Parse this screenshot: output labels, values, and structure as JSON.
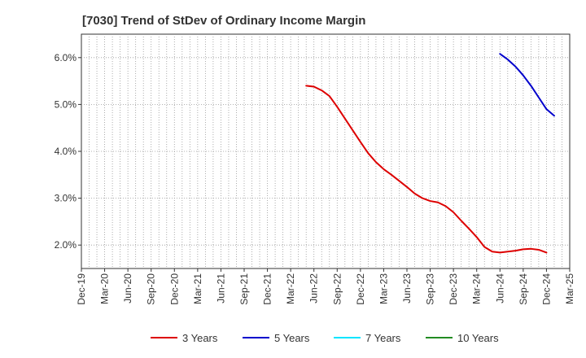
{
  "chart_data": {
    "type": "line",
    "title": "[7030]  Trend of StDev of Ordinary Income Margin",
    "xlabel": "",
    "ylabel": "",
    "ylim": [
      1.5,
      6.5
    ],
    "y_ticks": [
      "2.0%",
      "3.0%",
      "4.0%",
      "5.0%",
      "6.0%"
    ],
    "y_tick_values": [
      2.0,
      3.0,
      4.0,
      5.0,
      6.0
    ],
    "x_ticks": [
      "Dec-19",
      "Mar-20",
      "Jun-20",
      "Sep-20",
      "Dec-20",
      "Mar-21",
      "Jun-21",
      "Sep-21",
      "Dec-21",
      "Mar-22",
      "Jun-22",
      "Sep-22",
      "Dec-22",
      "Mar-23",
      "Jun-23",
      "Sep-23",
      "Dec-23",
      "Mar-24",
      "Jun-24",
      "Sep-24",
      "Dec-24",
      "Mar-25"
    ],
    "grid": true,
    "legend_position": "bottom",
    "series": [
      {
        "name": "3 Years",
        "color": "#dd0000",
        "points": [
          [
            "May-22",
            5.4
          ],
          [
            "Jun-22",
            5.38
          ],
          [
            "Jul-22",
            5.3
          ],
          [
            "Aug-22",
            5.18
          ],
          [
            "Sep-22",
            4.95
          ],
          [
            "Oct-22",
            4.7
          ],
          [
            "Nov-22",
            4.45
          ],
          [
            "Dec-22",
            4.2
          ],
          [
            "Jan-23",
            3.96
          ],
          [
            "Feb-23",
            3.77
          ],
          [
            "Mar-23",
            3.62
          ],
          [
            "Apr-23",
            3.5
          ],
          [
            "May-23",
            3.37
          ],
          [
            "Jun-23",
            3.24
          ],
          [
            "Jul-23",
            3.1
          ],
          [
            "Aug-23",
            3.0
          ],
          [
            "Sep-23",
            2.94
          ],
          [
            "Oct-23",
            2.91
          ],
          [
            "Nov-23",
            2.83
          ],
          [
            "Dec-23",
            2.7
          ],
          [
            "Jan-24",
            2.52
          ],
          [
            "Feb-24",
            2.35
          ],
          [
            "Mar-24",
            2.17
          ],
          [
            "Apr-24",
            1.96
          ],
          [
            "May-24",
            1.86
          ],
          [
            "Jun-24",
            1.84
          ],
          [
            "Jul-24",
            1.86
          ],
          [
            "Aug-24",
            1.88
          ],
          [
            "Sep-24",
            1.91
          ],
          [
            "Oct-24",
            1.92
          ],
          [
            "Nov-24",
            1.9
          ],
          [
            "Dec-24",
            1.84
          ]
        ]
      },
      {
        "name": "5 Years",
        "color": "#0000cc",
        "points": [
          [
            "Jun-24",
            6.08
          ],
          [
            "Jul-24",
            5.96
          ],
          [
            "Aug-24",
            5.81
          ],
          [
            "Sep-24",
            5.62
          ],
          [
            "Oct-24",
            5.4
          ],
          [
            "Nov-24",
            5.15
          ],
          [
            "Dec-24",
            4.9
          ],
          [
            "Jan-25",
            4.76
          ]
        ]
      },
      {
        "name": "7 Years",
        "color": "#00e5ff",
        "points": []
      },
      {
        "name": "10 Years",
        "color": "#228b22",
        "points": []
      }
    ]
  }
}
